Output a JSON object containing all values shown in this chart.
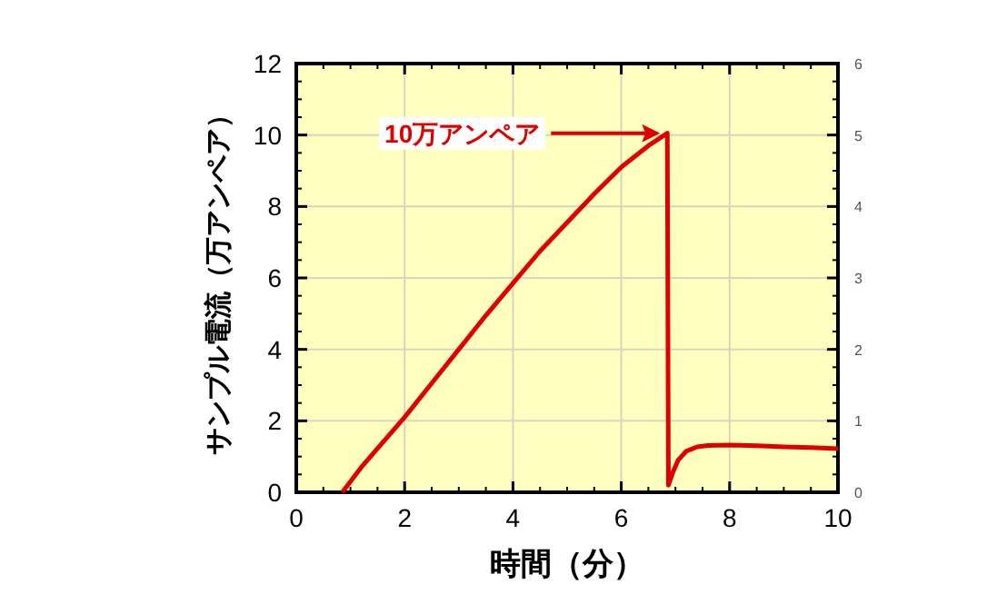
{
  "chart_data": {
    "type": "line",
    "xlabel": "時間（分）",
    "ylabel": "サンプル電流（万アンペア）",
    "x": [
      0.85,
      1.2,
      1.6,
      2.0,
      2.5,
      3.0,
      3.5,
      4.0,
      4.5,
      5.0,
      5.5,
      6.0,
      6.5,
      6.85,
      6.87,
      6.95,
      7.05,
      7.2,
      7.4,
      7.6,
      8.0,
      8.5,
      9.0,
      9.5,
      10.0
    ],
    "series": [
      {
        "color": "#e00000",
        "values": [
          0,
          0.7,
          1.4,
          2.1,
          3.05,
          4.0,
          4.95,
          5.85,
          6.75,
          7.55,
          8.35,
          9.1,
          9.7,
          10.05,
          0.2,
          0.55,
          0.9,
          1.15,
          1.27,
          1.31,
          1.32,
          1.3,
          1.27,
          1.25,
          1.22
        ]
      }
    ],
    "xlim": [
      0,
      10
    ],
    "xticks": [
      0,
      2,
      4,
      6,
      8,
      10
    ],
    "ylim": [
      0,
      12
    ],
    "yticks": [
      0,
      2,
      4,
      6,
      8,
      10,
      12
    ],
    "y2lim": [
      0,
      6
    ],
    "y2ticks": [
      0,
      1,
      2,
      3,
      4,
      5,
      6
    ],
    "grid": true,
    "marker": "none",
    "line_style": "solid",
    "annotations": [
      "10万アンペア"
    ]
  }
}
